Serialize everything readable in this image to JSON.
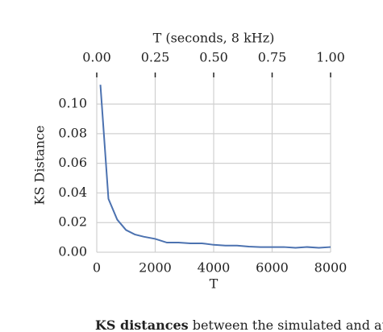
{
  "chart_data": {
    "type": "line",
    "x_label": "T",
    "y_label": "KS Distance",
    "x2_label": "T (seconds, 8 kHz)",
    "x": [
      125,
      400,
      700,
      1000,
      1300,
      1600,
      2000,
      2400,
      2800,
      3200,
      3600,
      4000,
      4400,
      4800,
      5200,
      5600,
      6000,
      6400,
      6800,
      7200,
      7600,
      8000
    ],
    "series": [
      {
        "color": "#4c72b0",
        "values": [
          0.113,
          0.036,
          0.022,
          0.015,
          0.012,
          0.0105,
          0.009,
          0.0065,
          0.0065,
          0.006,
          0.006,
          0.005,
          0.0045,
          0.0045,
          0.0038,
          0.0035,
          0.0035,
          0.0035,
          0.003,
          0.0035,
          0.003,
          0.0035
        ]
      }
    ],
    "xlim": [
      0,
      8000
    ],
    "xticks": [
      0,
      2000,
      4000,
      6000,
      8000
    ],
    "ylim": [
      0,
      0.118
    ],
    "yticks": [
      {
        "value": 0,
        "label": "0.00"
      },
      {
        "value": 0.02,
        "label": "0.02"
      },
      {
        "value": 0.04,
        "label": "0.04"
      },
      {
        "value": 0.06,
        "label": "0.06"
      },
      {
        "value": 0.08,
        "label": "0.08"
      },
      {
        "value": 0.1,
        "label": "0.10"
      }
    ],
    "x2lim": [
      0,
      1
    ],
    "x2ticks": [
      {
        "value": 0,
        "label": "0.00"
      },
      {
        "value": 0.25,
        "label": "0.25"
      },
      {
        "value": 0.5,
        "label": "0.50"
      },
      {
        "value": 0.75,
        "label": "0.75"
      },
      {
        "value": 1,
        "label": "1.00"
      }
    ],
    "grid": true
  },
  "caption": {
    "bold": "KS distances",
    "text": "between the simulated and approximate S"
  }
}
